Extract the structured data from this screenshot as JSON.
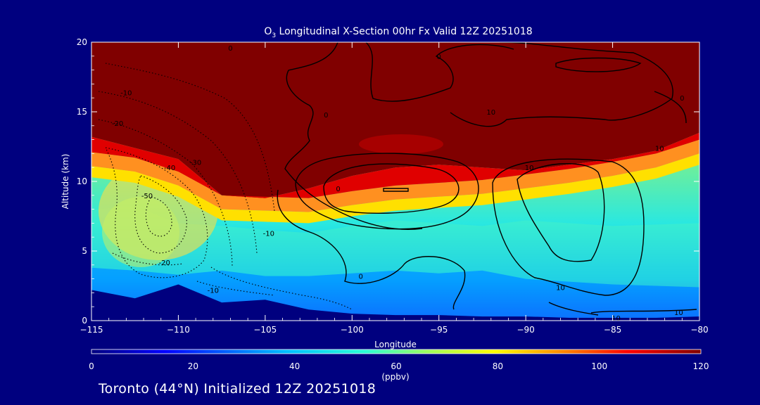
{
  "chart_data": {
    "type": "heatmap",
    "title": "O",
    "title_sub": "3",
    "title_rest": " Longitudinal X-Section 00hr  Fx Valid 12Z 20251018",
    "xlabel": "Longitude",
    "ylabel": "Altitude (km)",
    "xlim": [
      -115,
      -80
    ],
    "ylim": [
      0,
      20
    ],
    "x_ticks": [
      -115,
      -110,
      -105,
      -100,
      -95,
      -90,
      -85,
      -80
    ],
    "x_tick_labels": [
      "−115",
      "−110",
      "−105",
      "−100",
      "−95",
      "−90",
      "−85",
      "−80"
    ],
    "y_ticks": [
      0,
      5,
      10,
      15,
      20
    ],
    "y_tick_labels": [
      "0",
      "5",
      "10",
      "15",
      "20"
    ],
    "colorbar": {
      "label": "(ppbv)",
      "range": [
        0,
        120
      ],
      "ticks": [
        0,
        20,
        40,
        60,
        80,
        100,
        120
      ],
      "tick_labels": [
        "0",
        "20",
        "40",
        "60",
        "80",
        "100",
        "120"
      ]
    },
    "boundaries": {
      "lon": [
        -115,
        -112.5,
        -110,
        -107.5,
        -105,
        -102.5,
        -100,
        -97.5,
        -95,
        -92.5,
        -90,
        -87.5,
        -85,
        -82.5,
        -80
      ],
      "tropopause_lower_km": [
        11.6,
        11.2,
        10.2,
        8.5,
        8.4,
        8.3,
        8.8,
        9.2,
        9.4,
        9.6,
        10.0,
        10.4,
        10.9,
        11.5,
        12.5
      ],
      "tropopause_upper_km": [
        13.2,
        12.4,
        11.6,
        9.0,
        8.8,
        9.5,
        10.4,
        11.0,
        11.2,
        11.0,
        10.8,
        11.2,
        11.6,
        12.2,
        13.5
      ],
      "free_trop_top_km": [
        8.0,
        8.2,
        7.0,
        6.8,
        6.5,
        6.3,
        6.8,
        7.2,
        7.0,
        6.8,
        7.2,
        7.0,
        6.8,
        6.9,
        7.0
      ],
      "boundary_layer_top_km": [
        3.8,
        3.6,
        3.3,
        3.6,
        3.2,
        3.2,
        3.4,
        3.6,
        3.4,
        3.6,
        3.0,
        2.8,
        2.6,
        2.5,
        2.4
      ],
      "surface_km": [
        2.2,
        1.6,
        2.6,
        1.3,
        1.5,
        0.8,
        0.5,
        0.4,
        0.4,
        0.3,
        0.3,
        0.2,
        0.2,
        0.2,
        0.3
      ]
    },
    "contour_labels": [
      {
        "text": "0",
        "lon": -107.0,
        "alt": 19.6
      },
      {
        "text": "-10",
        "lon": -113.0,
        "alt": 16.4
      },
      {
        "text": "-20",
        "lon": -113.5,
        "alt": 14.2
      },
      {
        "text": "-40",
        "lon": -110.5,
        "alt": 11.0
      },
      {
        "text": "-30",
        "lon": -109.0,
        "alt": 11.4
      },
      {
        "text": "-50",
        "lon": -111.8,
        "alt": 9.0
      },
      {
        "text": "-20",
        "lon": -110.8,
        "alt": 4.2
      },
      {
        "text": "-10",
        "lon": -104.8,
        "alt": 6.3
      },
      {
        "text": "-10",
        "lon": -108.0,
        "alt": 2.2
      },
      {
        "text": "0",
        "lon": -101.5,
        "alt": 14.8
      },
      {
        "text": "0",
        "lon": -95.0,
        "alt": 19.0
      },
      {
        "text": "10",
        "lon": -92.0,
        "alt": 15.0
      },
      {
        "text": "0",
        "lon": -100.8,
        "alt": 9.5
      },
      {
        "text": "0",
        "lon": -99.5,
        "alt": 3.2
      },
      {
        "text": "10",
        "lon": -89.8,
        "alt": 11.0
      },
      {
        "text": "10",
        "lon": -82.3,
        "alt": 12.4
      },
      {
        "text": "0",
        "lon": -81.0,
        "alt": 16.0
      },
      {
        "text": "10",
        "lon": -88.0,
        "alt": 2.4
      },
      {
        "text": "10",
        "lon": -84.8,
        "alt": 0.2
      },
      {
        "text": "10",
        "lon": -81.2,
        "alt": 0.6
      }
    ]
  },
  "footer": {
    "text": "Toronto (44°N) Initialized 12Z 20251018"
  }
}
